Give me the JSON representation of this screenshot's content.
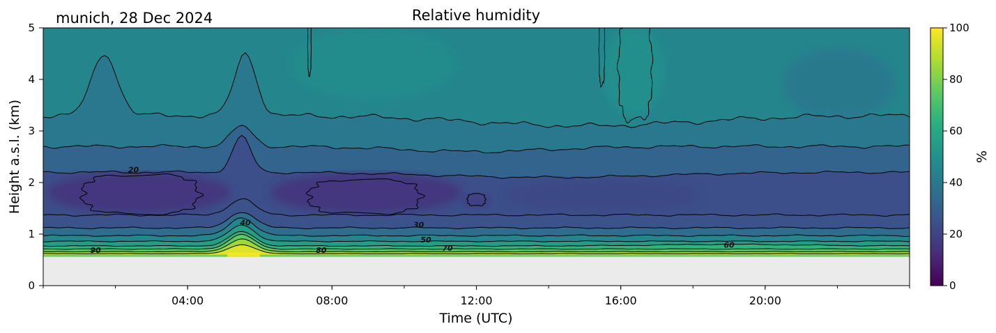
{
  "header": {
    "location_date": "munich, 28 Dec 2024",
    "title": "Relative humidity"
  },
  "chart_data": {
    "type": "heatmap",
    "title": "Relative humidity",
    "xlabel": "Time (UTC)",
    "ylabel": "Height a.s.l. (km)",
    "xlim_hours": [
      0,
      24
    ],
    "ylim": [
      0,
      5
    ],
    "x_ticks": [
      {
        "value": 4,
        "label": "04:00"
      },
      {
        "value": 8,
        "label": "08:00"
      },
      {
        "value": 12,
        "label": "12:00"
      },
      {
        "value": 16,
        "label": "16:00"
      },
      {
        "value": 20,
        "label": "20:00"
      }
    ],
    "y_ticks": [
      {
        "value": 0,
        "label": "0"
      },
      {
        "value": 1,
        "label": "1"
      },
      {
        "value": 2,
        "label": "2"
      },
      {
        "value": 3,
        "label": "3"
      },
      {
        "value": 4,
        "label": "4"
      },
      {
        "value": 5,
        "label": "5"
      }
    ],
    "colorbar": {
      "label": "%",
      "range": [
        0,
        100
      ],
      "colormap": "viridis",
      "ticks": [
        "0",
        "20",
        "40",
        "60",
        "80",
        "100"
      ]
    },
    "no_data_below_km": 0.56,
    "colormap_stops": [
      "#440154",
      "#472d7b",
      "#3b528b",
      "#2c728e",
      "#21918c",
      "#28ae80",
      "#5ec962",
      "#addc30",
      "#fde725"
    ],
    "contour_levels": [
      20,
      30,
      40,
      50,
      60,
      70,
      80,
      90
    ],
    "contour_labels": [
      {
        "text": "20",
        "hour": 2.5,
        "km": 2.25
      },
      {
        "text": "40",
        "hour": 5.6,
        "km": 1.22
      },
      {
        "text": "30",
        "hour": 10.4,
        "km": 1.18
      },
      {
        "text": "50",
        "hour": 10.6,
        "km": 0.89
      },
      {
        "text": "70",
        "hour": 11.2,
        "km": 0.73
      },
      {
        "text": "80",
        "hour": 7.7,
        "km": 0.69
      },
      {
        "text": "90",
        "hour": 1.45,
        "km": 0.69
      },
      {
        "text": "60",
        "hour": 19.0,
        "km": 0.79
      }
    ],
    "features": {
      "dry_layer_rh": 15,
      "dry_layer_km": [
        1.4,
        2.2
      ],
      "upper_moist_patch_hours": [
        15.5,
        17.2
      ],
      "upper_moist_patch_rh": 50,
      "surface_moist_rh": 90
    }
  }
}
